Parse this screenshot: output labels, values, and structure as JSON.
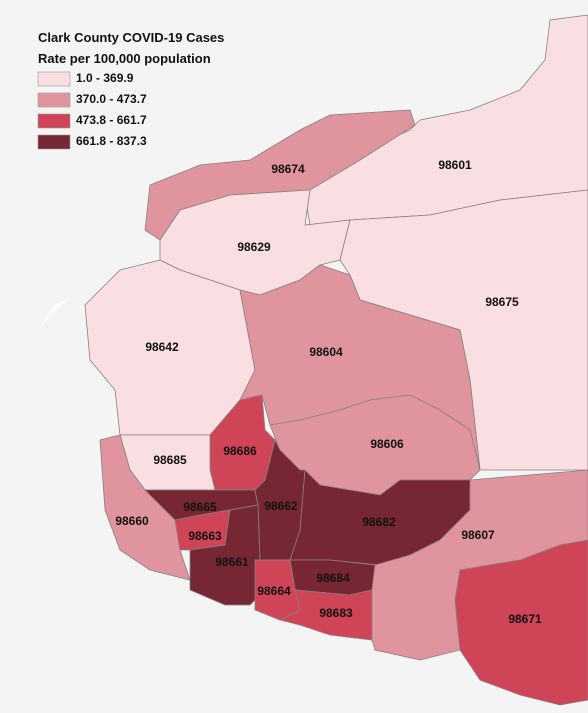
{
  "title": "Clark County COVID-19 Cases",
  "subtitle": "Rate per 100,000 population",
  "legend": [
    {
      "label": "1.0 - 369.9",
      "color": "#f9dfe1"
    },
    {
      "label": "370.0 - 473.7",
      "color": "#e0959e"
    },
    {
      "label": "473.8 - 661.7",
      "color": "#cf4457"
    },
    {
      "label": "661.8 - 837.3",
      "color": "#772733"
    }
  ],
  "regions": [
    {
      "zip": "98601",
      "color": "#f9dfe1"
    },
    {
      "zip": "98674",
      "color": "#e0959e"
    },
    {
      "zip": "98629",
      "color": "#f9dfe1"
    },
    {
      "zip": "98675",
      "color": "#f9dfe1"
    },
    {
      "zip": "98642",
      "color": "#f9dfe1"
    },
    {
      "zip": "98604",
      "color": "#e0959e"
    },
    {
      "zip": "98606",
      "color": "#e0959e"
    },
    {
      "zip": "98686",
      "color": "#cf4457"
    },
    {
      "zip": "98685",
      "color": "#f9dfe1"
    },
    {
      "zip": "98660",
      "color": "#e0959e"
    },
    {
      "zip": "98665",
      "color": "#772733"
    },
    {
      "zip": "98662",
      "color": "#772733"
    },
    {
      "zip": "98682",
      "color": "#772733"
    },
    {
      "zip": "98663",
      "color": "#cf4457"
    },
    {
      "zip": "98661",
      "color": "#772733"
    },
    {
      "zip": "98684",
      "color": "#772733"
    },
    {
      "zip": "98664",
      "color": "#cf4457"
    },
    {
      "zip": "98683",
      "color": "#cf4457"
    },
    {
      "zip": "98607",
      "color": "#e0959e"
    },
    {
      "zip": "98671",
      "color": "#cf4457"
    }
  ]
}
